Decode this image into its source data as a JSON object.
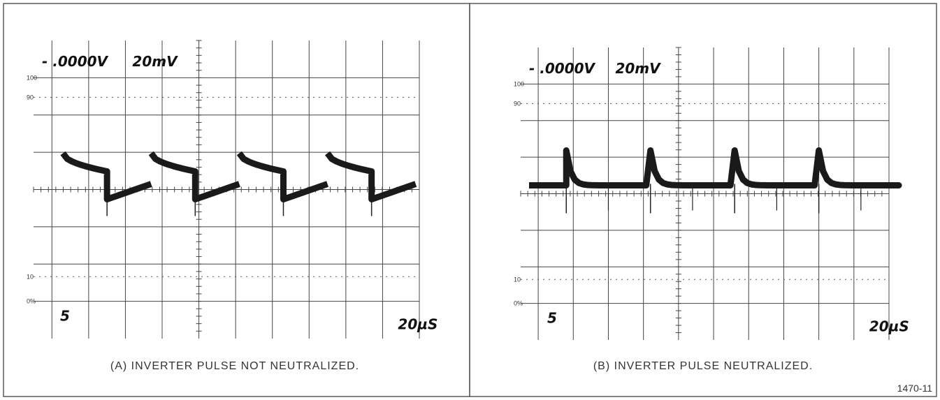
{
  "panels": [
    {
      "readout_offset": "- .0000V",
      "readout_scale": "20mV",
      "readout_channel": "5",
      "readout_time": "20µS",
      "graticule_labels": [
        "100",
        "90",
        "10",
        "0%"
      ],
      "caption": "(A)  INVERTER PULSE NOT NEUTRALIZED."
    },
    {
      "readout_offset": "- .0000V",
      "readout_scale": "20mV",
      "readout_channel": "5",
      "readout_time": "20µS",
      "graticule_labels": [
        "100",
        "90",
        "10",
        "0%"
      ],
      "caption": "(B)  INVERTER PULSE NEUTRALIZED."
    }
  ],
  "figure_number": "1470-11"
}
